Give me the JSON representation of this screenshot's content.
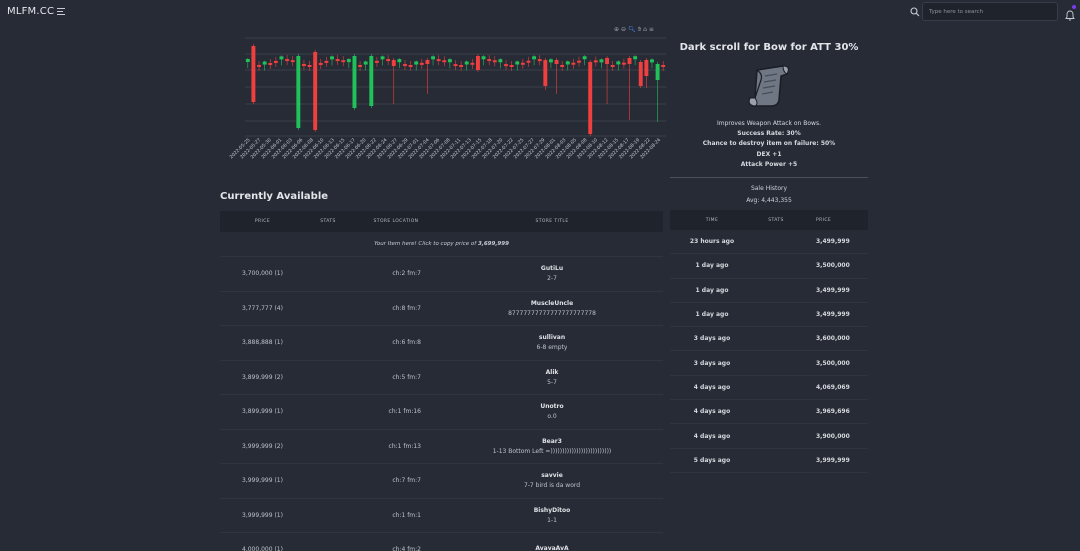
{
  "header": {
    "brand": "MLFM.CC",
    "search_placeholder": "Type here to search"
  },
  "colors": {
    "up": "#21c15a",
    "down": "#ef3f3f",
    "background": "#262b35",
    "accent": "#7a3cf0"
  },
  "chart_data": {
    "type": "candlestick",
    "x": [
      "2022-05-25",
      "2022-05-27",
      "2022-05-30",
      "2022-06-01",
      "2022-06-03",
      "2022-06-06",
      "2022-06-08",
      "2022-06-10",
      "2022-06-13",
      "2022-06-15",
      "2022-06-17",
      "2022-06-20",
      "2022-06-22",
      "2022-06-24",
      "2022-06-27",
      "2022-06-29",
      "2022-07-01",
      "2022-07-04",
      "2022-07-06",
      "2022-07-08",
      "2022-07-11",
      "2022-07-13",
      "2022-07-15",
      "2022-07-18",
      "2022-07-20",
      "2022-07-22",
      "2022-07-25",
      "2022-07-27",
      "2022-07-29",
      "2022-08-01",
      "2022-08-03",
      "2022-08-05",
      "2022-08-08",
      "2022-08-10",
      "2022-08-12",
      "2022-08-15",
      "2022-08-17",
      "2022-08-19",
      "2022-08-22",
      "2022-08-24"
    ],
    "ylim": [
      0,
      5.5
    ],
    "icons": [
      "zoom-in-icon",
      "zoom-out-icon",
      "magnify-icon",
      "pan-icon",
      "home-icon",
      "menu-icon"
    ]
  },
  "item": {
    "title": "Dark scroll for Bow for ATT 30%",
    "description": "Improves Weapon Attack on Bows.",
    "success_rate": "Success Rate: 30%",
    "destroy_chance": "Chance to destroy item on failure: 50%",
    "stat1": "DEX +1",
    "stat2": "Attack Power +5"
  },
  "sale_history": {
    "title": "Sale History",
    "avg": "Avg: 4,443,355",
    "columns": [
      "TIME",
      "STATS",
      "PRICE"
    ],
    "rows": [
      {
        "time": "23 hours ago",
        "price": "3,499,999"
      },
      {
        "time": "1 day ago",
        "price": "3,500,000"
      },
      {
        "time": "1 day ago",
        "price": "3,499,999"
      },
      {
        "time": "1 day ago",
        "price": "3,499,999"
      },
      {
        "time": "3 days ago",
        "price": "3,600,000"
      },
      {
        "time": "3 days ago",
        "price": "3,500,000"
      },
      {
        "time": "4 days ago",
        "price": "4,069,069"
      },
      {
        "time": "4 days ago",
        "price": "3,969,696"
      },
      {
        "time": "4 days ago",
        "price": "3,900,000"
      },
      {
        "time": "5 days ago",
        "price": "3,999,999"
      }
    ]
  },
  "available": {
    "title": "Currently Available",
    "columns": [
      "PRICE",
      "STATS",
      "STORE LOCATION",
      "STORE TITLE"
    ],
    "note_prefix": "Your Item here! Click to copy price of ",
    "note_price": "3,699,999",
    "rows": [
      {
        "price": "3,700,000 (1)",
        "location": "ch:2 fm:7",
        "seller": "GutiLu",
        "title": "2-7"
      },
      {
        "price": "3,777,777 (4)",
        "location": "ch:8 fm:7",
        "seller": "MuscleUncle",
        "title": "87777777777777777777778"
      },
      {
        "price": "3,888,888 (1)",
        "location": "ch:6 fm:8",
        "seller": "sullivan",
        "title": "6-8 empty"
      },
      {
        "price": "3,899,999 (2)",
        "location": "ch:5 fm:7",
        "seller": "Alik",
        "title": "5-7"
      },
      {
        "price": "3,899,999 (1)",
        "location": "ch:1 fm:16",
        "seller": "Unotro",
        "title": "o.0"
      },
      {
        "price": "3,999,999 (2)",
        "location": "ch:1 fm:13",
        "seller": "Bear3",
        "title": "1-13 Bottom Left =))))))))))))))))))))))))))"
      },
      {
        "price": "3,999,999 (1)",
        "location": "ch:7 fm:7",
        "seller": "savvie",
        "title": "7-7 bird is da word"
      },
      {
        "price": "3,999,999 (1)",
        "location": "ch:1 fm:1",
        "seller": "BishyDitoo",
        "title": "1-1"
      },
      {
        "price": "4,000,000 (1)",
        "location": "ch:4 fm:2",
        "seller": "AvavaAvA",
        "title": ""
      }
    ]
  }
}
